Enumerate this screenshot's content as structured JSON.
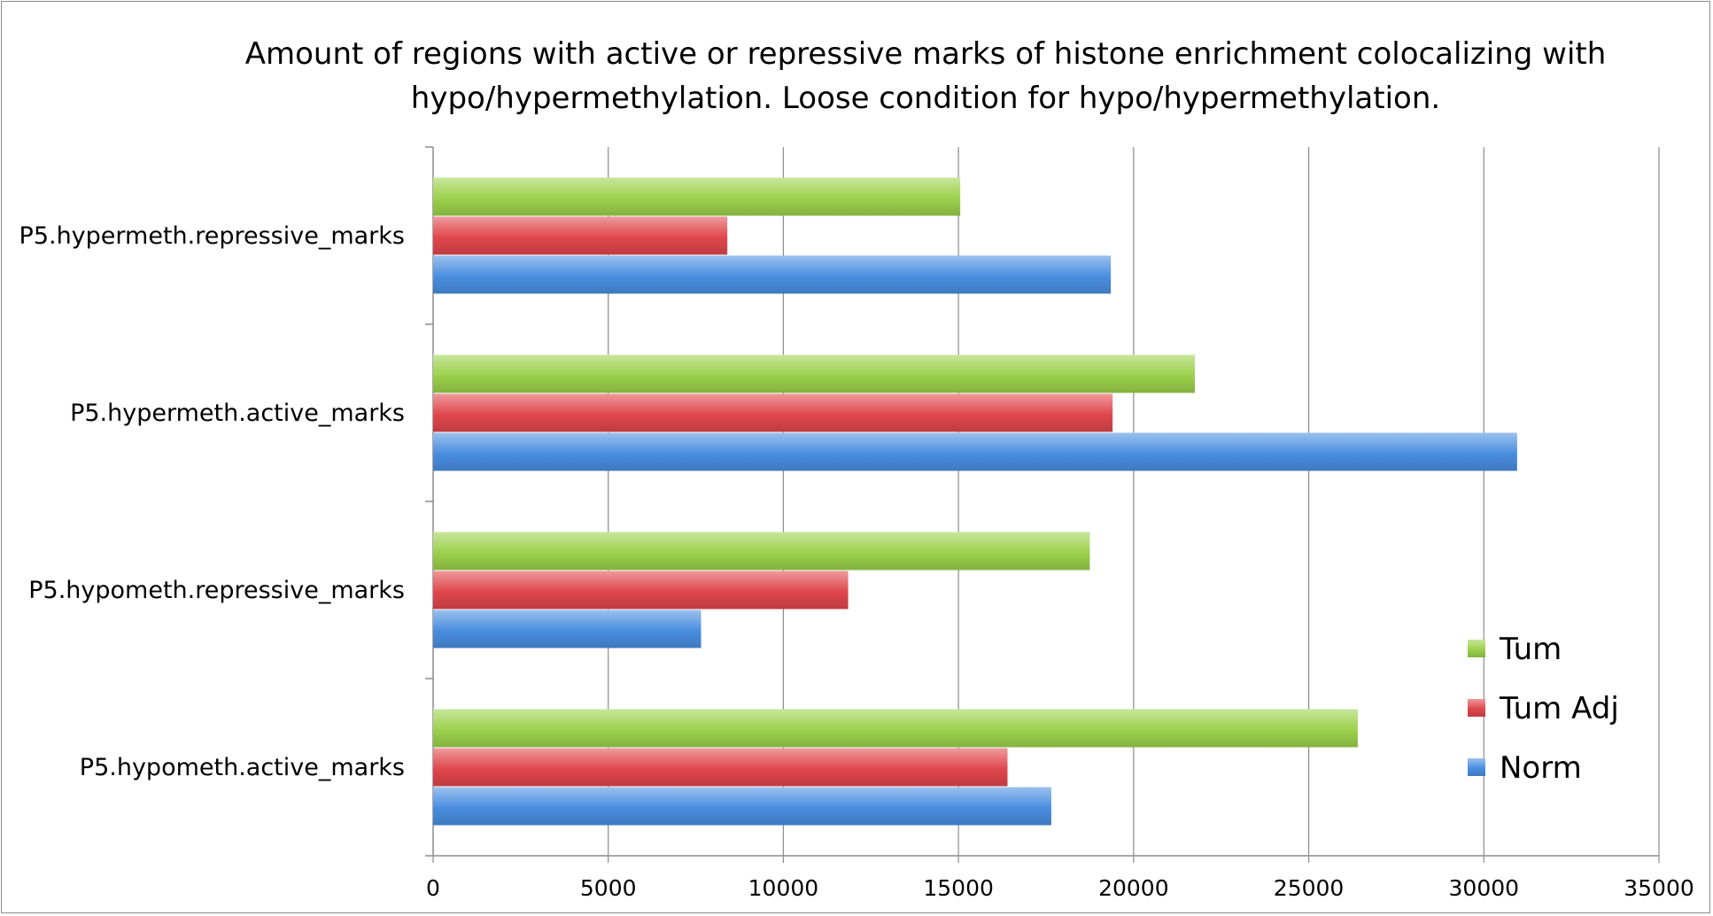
{
  "chart_data": {
    "type": "bar",
    "orientation": "horizontal",
    "title": "Amount of regions with active or repressive marks of histone enrichment colocalizing with hypo/hypermethylation. Loose condition for hypo/hypermethylation.",
    "categories": [
      "P5.hypermeth.repressive_marks",
      "P5.hypermeth.active_marks",
      "P5.hypometh.repressive_marks",
      "P5.hypometh.active_marks"
    ],
    "series": [
      {
        "name": "Tum",
        "values": [
          15050,
          21750,
          18750,
          26400
        ],
        "color": "#9bd14b"
      },
      {
        "name": "Tum Adj",
        "values": [
          8400,
          19400,
          11850,
          16400
        ],
        "color": "#e0474c"
      },
      {
        "name": "Norm",
        "values": [
          19350,
          30950,
          7650,
          17650
        ],
        "color": "#4a8ee0"
      }
    ],
    "xlim": [
      0,
      35000
    ],
    "xticks": [
      "0",
      "5000",
      "10000",
      "15000",
      "20000",
      "25000",
      "30000",
      "35000"
    ],
    "xtick_values": [
      0,
      5000,
      10000,
      15000,
      20000,
      25000,
      30000,
      35000
    ],
    "grid": true,
    "legend": "bottom-right"
  }
}
